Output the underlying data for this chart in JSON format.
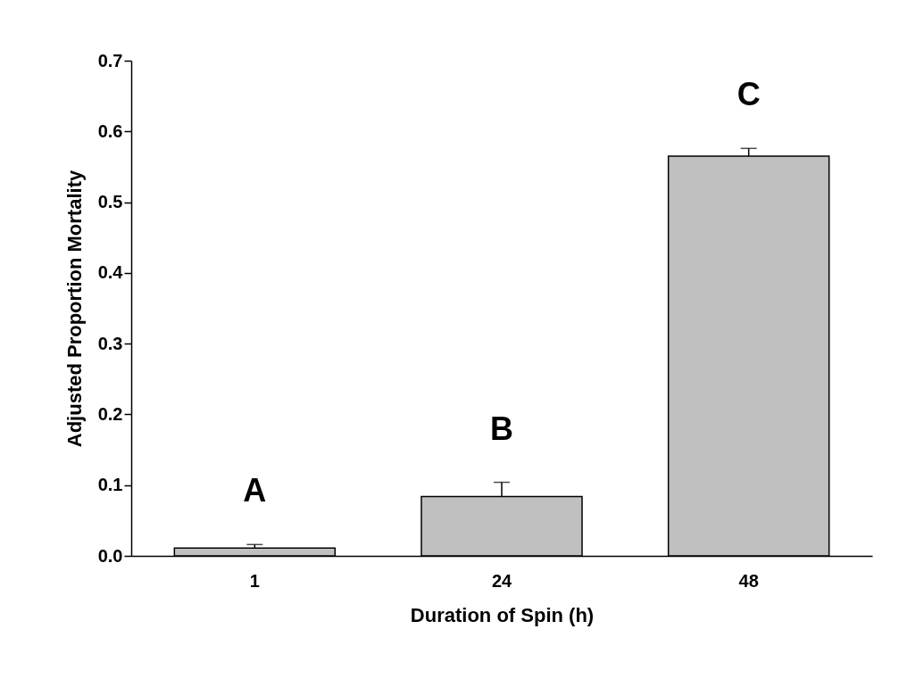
{
  "chart_data": {
    "type": "bar",
    "xlabel": "Duration of Spin (h)",
    "ylabel": "Adjusted Proportion Mortality",
    "categories": [
      "1",
      "24",
      "48"
    ],
    "series": [
      {
        "color": "#c0c0c0",
        "values": [
          0.011,
          0.084,
          0.565
        ],
        "errors": [
          [
            0.011,
            0.016
          ],
          [
            0.084,
            0.104
          ],
          [
            0.565,
            0.576
          ]
        ]
      }
    ],
    "ylim": [
      0,
      0.7
    ],
    "yticks": [
      {
        "value": 0,
        "label": "0.0"
      },
      0.1,
      0.2,
      0.3,
      0.4,
      0.5,
      0.6,
      0.7
    ],
    "annotations": [
      "A",
      "B",
      "C"
    ],
    "grid": false
  }
}
